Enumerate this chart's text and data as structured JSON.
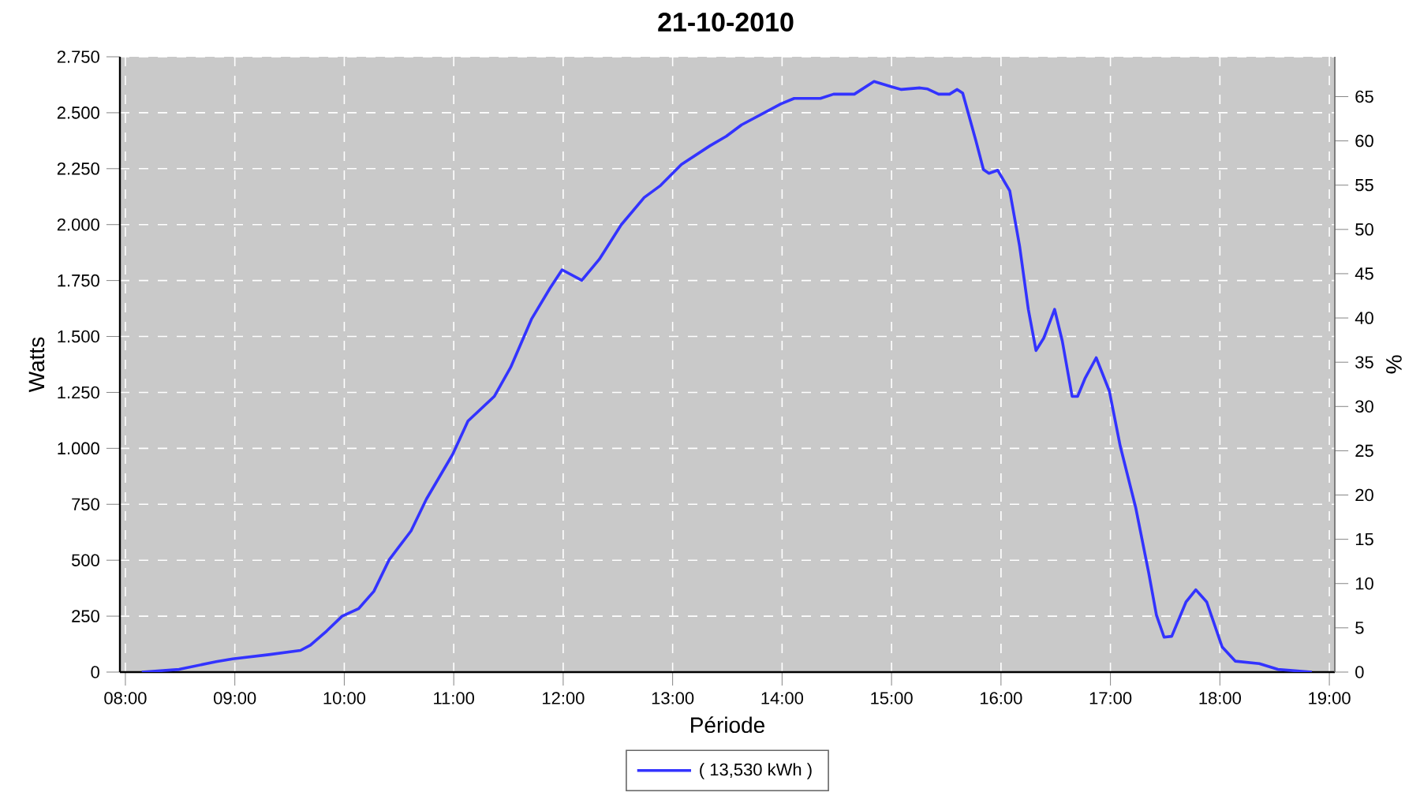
{
  "chart_data": {
    "type": "line",
    "title": "21-10-2010",
    "xlabel": "Période",
    "ylabel": "Watts",
    "y2label": "%",
    "x": [
      8.15,
      8.49,
      8.83,
      8.98,
      9.31,
      9.6,
      9.69,
      9.84,
      9.98,
      10.13,
      10.27,
      10.41,
      10.61,
      10.75,
      10.99,
      11.13,
      11.37,
      11.52,
      11.71,
      11.88,
      11.99,
      12.17,
      12.33,
      12.53,
      12.74,
      12.89,
      13.08,
      13.34,
      13.49,
      13.63,
      13.99,
      14.11,
      14.35,
      14.47,
      14.66,
      14.84,
      15.0,
      15.09,
      15.26,
      15.33,
      15.43,
      15.53,
      15.6,
      15.65,
      15.69,
      15.77,
      15.84,
      15.89,
      15.97,
      16.08,
      16.17,
      16.25,
      16.32,
      16.39,
      16.49,
      16.56,
      16.65,
      16.7,
      16.77,
      16.87,
      16.99,
      17.09,
      17.23,
      17.35,
      17.42,
      17.49,
      17.56,
      17.69,
      17.78,
      17.88,
      18.02,
      18.14,
      18.36,
      18.53,
      18.84
    ],
    "series": [
      {
        "name": "( 13,530 kWh )",
        "color": "#3333ff",
        "values": [
          0,
          12,
          47,
          59,
          78,
          97,
          120,
          184,
          250,
          283,
          361,
          502,
          631,
          773,
          973,
          1122,
          1232,
          1362,
          1577,
          1716,
          1798,
          1751,
          1845,
          1999,
          2121,
          2175,
          2269,
          2352,
          2395,
          2446,
          2540,
          2564,
          2564,
          2583,
          2583,
          2640,
          2616,
          2604,
          2611,
          2606,
          2583,
          2583,
          2604,
          2588,
          2517,
          2376,
          2246,
          2229,
          2243,
          2151,
          1904,
          1621,
          1437,
          1492,
          1621,
          1480,
          1232,
          1232,
          1315,
          1405,
          1256,
          1009,
          737,
          443,
          255,
          156,
          160,
          313,
          368,
          313,
          113,
          49,
          38,
          12,
          0
        ]
      }
    ],
    "xlim": [
      7.95,
      19.05
    ],
    "xticks": [
      {
        "value": 8,
        "label": "08:00"
      },
      {
        "value": 9,
        "label": "09:00"
      },
      {
        "value": 10,
        "label": "10:00"
      },
      {
        "value": 11,
        "label": "11:00"
      },
      {
        "value": 12,
        "label": "12:00"
      },
      {
        "value": 13,
        "label": "13:00"
      },
      {
        "value": 14,
        "label": "14:00"
      },
      {
        "value": 15,
        "label": "15:00"
      },
      {
        "value": 16,
        "label": "16:00"
      },
      {
        "value": 17,
        "label": "17:00"
      },
      {
        "value": 18,
        "label": "18:00"
      },
      {
        "value": 19,
        "label": "19:00"
      }
    ],
    "ylim": [
      0,
      2750
    ],
    "yticks": [
      0,
      250,
      500,
      750,
      {
        "value": 1000,
        "label": "1.000"
      },
      {
        "value": 1250,
        "label": "1.250"
      },
      {
        "value": 1500,
        "label": "1.500"
      },
      {
        "value": 1750,
        "label": "1.750"
      },
      {
        "value": 2000,
        "label": "2.000"
      },
      {
        "value": 2250,
        "label": "2.250"
      },
      {
        "value": 2500,
        "label": "2.500"
      },
      {
        "value": 2750,
        "label": "2.750"
      }
    ],
    "y2lim": [
      0,
      69.5
    ],
    "y2ticks": [
      0,
      5,
      10,
      15,
      20,
      25,
      30,
      35,
      40,
      45,
      50,
      55,
      60,
      65
    ],
    "grid": true,
    "legend": "bottom",
    "marker": "none",
    "line_style": "solid"
  }
}
